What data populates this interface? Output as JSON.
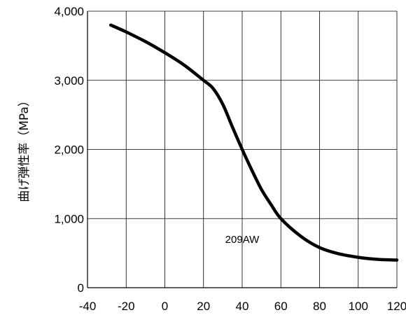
{
  "chart_data": {
    "type": "line",
    "title": "",
    "xlabel": "",
    "ylabel": "曲げ弾性率（MPa）",
    "xlim": [
      -40,
      120
    ],
    "ylim": [
      0,
      4000
    ],
    "x_ticks": [
      -40,
      -20,
      0,
      20,
      40,
      60,
      80,
      100,
      120
    ],
    "x_tick_labels": [
      "-40",
      "-20",
      "0",
      "20",
      "40",
      "60",
      "80",
      "100",
      "120"
    ],
    "y_ticks": [
      0,
      1000,
      2000,
      3000,
      4000
    ],
    "y_tick_labels": [
      "0",
      "1,000",
      "2,000",
      "3,000",
      "4,000"
    ],
    "grid": true,
    "series": [
      {
        "name": "209AW",
        "x": [
          -28,
          -20,
          -10,
          0,
          10,
          20,
          25,
          30,
          35,
          40,
          45,
          50,
          55,
          60,
          70,
          80,
          90,
          100,
          110,
          120
        ],
        "y": [
          3800,
          3700,
          3560,
          3400,
          3220,
          3000,
          2880,
          2650,
          2320,
          2000,
          1700,
          1420,
          1200,
          1000,
          750,
          580,
          490,
          440,
          410,
          400
        ]
      }
    ],
    "annotations": [
      {
        "text": "209AW",
        "x": 40,
        "y": 700
      }
    ]
  }
}
